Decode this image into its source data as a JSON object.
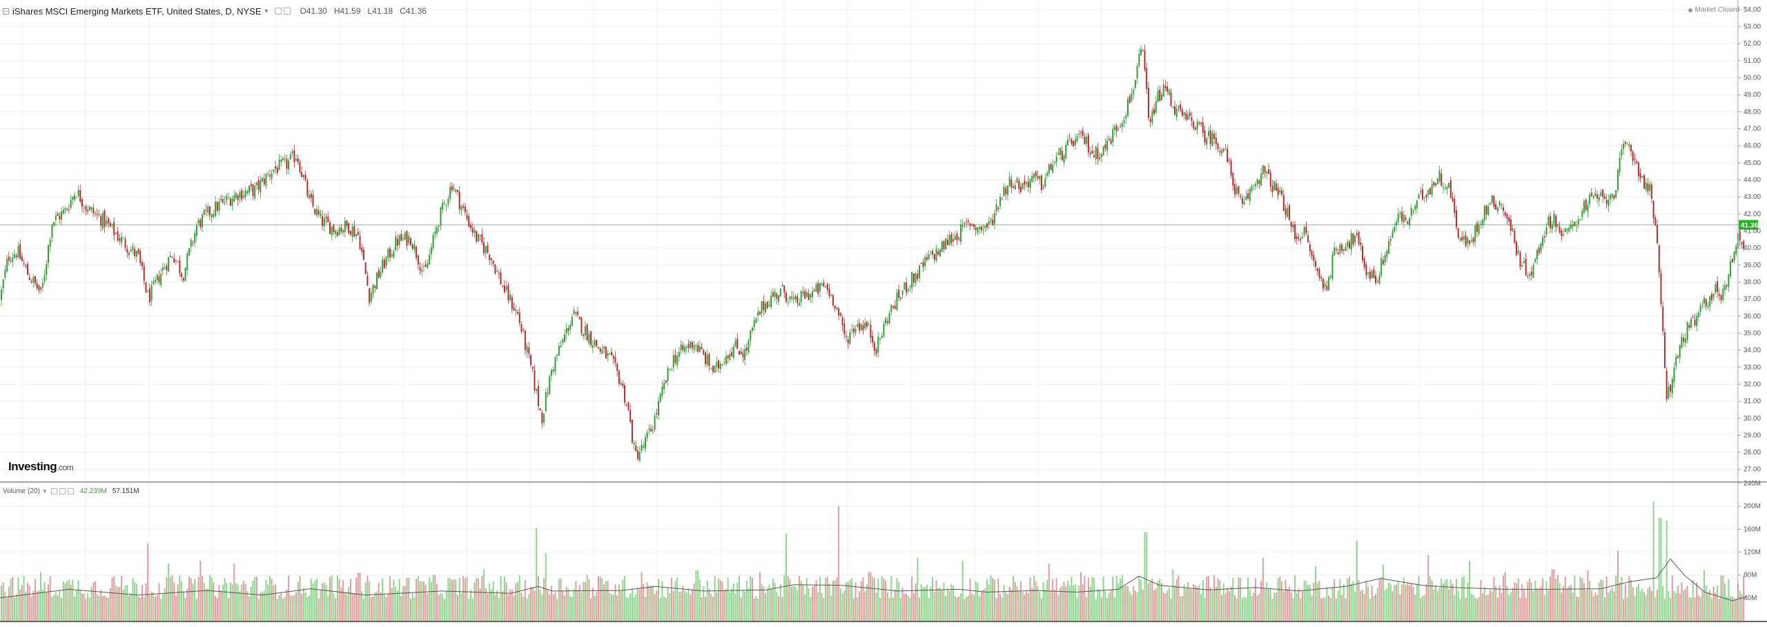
{
  "legend": {
    "symbol": "iShares MSCI Emerging Markets ETF, United States, D, NYSE",
    "open": "O41.30",
    "high": "H41.59",
    "low": "L41.18",
    "close": "C41.36"
  },
  "status": "Market Closed",
  "logo": {
    "brand": "Investing",
    "suffix": ".com"
  },
  "volume_legend": {
    "label": "Volume (20)",
    "value1": "42.239M",
    "value2": "57.151M"
  },
  "colors": {
    "up": "#2e9e32",
    "down": "#b62a2a",
    "vol_up": "#8ed68e",
    "vol_down": "#e39c9c",
    "last_price_line": "#7fdd7f",
    "last_price_tag": "#22b422",
    "ma_line": "#555555",
    "grid": "#eeeeee"
  },
  "chart_data": [
    {
      "type": "candlestick",
      "title": "iShares MSCI Emerging Markets ETF, United States, D, NYSE",
      "ylim": [
        26.3,
        54.4
      ],
      "y_ticks": [
        "27.00",
        "28.00",
        "29.00",
        "30.00",
        "31.00",
        "32.00",
        "33.00",
        "34.00",
        "35.00",
        "36.00",
        "37.00",
        "38.00",
        "39.00",
        "40.00",
        "41.00",
        "42.00",
        "43.00",
        "44.00",
        "45.00",
        "46.00",
        "47.00",
        "48.00",
        "49.00",
        "50.00",
        "51.00",
        "52.00",
        "53.00",
        "54.00"
      ],
      "last_price": 41.36,
      "last_price_label": "41.36",
      "grid": true,
      "price_path": [
        [
          0,
          37.0
        ],
        [
          12,
          39.5
        ],
        [
          25,
          39.8
        ],
        [
          40,
          38.5
        ],
        [
          60,
          37.3
        ],
        [
          75,
          41.5
        ],
        [
          95,
          42.2
        ],
        [
          110,
          43.4
        ],
        [
          125,
          42.4
        ],
        [
          150,
          41.6
        ],
        [
          175,
          40.5
        ],
        [
          200,
          39.5
        ],
        [
          215,
          37.0
        ],
        [
          235,
          38.7
        ],
        [
          250,
          39.7
        ],
        [
          265,
          38.4
        ],
        [
          285,
          41.3
        ],
        [
          300,
          42.0
        ],
        [
          320,
          42.6
        ],
        [
          345,
          43.2
        ],
        [
          370,
          43.4
        ],
        [
          395,
          44.6
        ],
        [
          415,
          44.9
        ],
        [
          430,
          45.5
        ],
        [
          448,
          42.8
        ],
        [
          465,
          41.6
        ],
        [
          485,
          41.1
        ],
        [
          505,
          41.3
        ],
        [
          520,
          40.7
        ],
        [
          535,
          37.2
        ],
        [
          555,
          39.0
        ],
        [
          575,
          40.4
        ],
        [
          595,
          40.6
        ],
        [
          615,
          38.4
        ],
        [
          635,
          41.6
        ],
        [
          655,
          43.8
        ],
        [
          670,
          42.3
        ],
        [
          690,
          40.6
        ],
        [
          710,
          39.6
        ],
        [
          730,
          37.6
        ],
        [
          750,
          36.1
        ],
        [
          770,
          32.8
        ],
        [
          785,
          30.0
        ],
        [
          800,
          33.0
        ],
        [
          815,
          34.5
        ],
        [
          830,
          36.1
        ],
        [
          850,
          35.0
        ],
        [
          870,
          34.0
        ],
        [
          885,
          33.4
        ],
        [
          900,
          32.1
        ],
        [
          910,
          30.5
        ],
        [
          920,
          27.8
        ],
        [
          930,
          28.2
        ],
        [
          945,
          29.5
        ],
        [
          960,
          31.6
        ],
        [
          975,
          33.5
        ],
        [
          990,
          34.0
        ],
        [
          1005,
          34.5
        ],
        [
          1020,
          33.6
        ],
        [
          1035,
          32.7
        ],
        [
          1050,
          33.7
        ],
        [
          1065,
          34.2
        ],
        [
          1080,
          33.8
        ],
        [
          1090,
          35.2
        ],
        [
          1105,
          36.6
        ],
        [
          1120,
          37.2
        ],
        [
          1135,
          37.5
        ],
        [
          1150,
          36.7
        ],
        [
          1165,
          37.2
        ],
        [
          1180,
          37.4
        ],
        [
          1195,
          37.8
        ],
        [
          1210,
          36.8
        ],
        [
          1225,
          34.6
        ],
        [
          1240,
          35.5
        ],
        [
          1255,
          35.5
        ],
        [
          1270,
          34.1
        ],
        [
          1285,
          35.9
        ],
        [
          1300,
          37.0
        ],
        [
          1315,
          37.9
        ],
        [
          1330,
          38.5
        ],
        [
          1345,
          39.4
        ],
        [
          1360,
          39.8
        ],
        [
          1375,
          40.5
        ],
        [
          1390,
          40.9
        ],
        [
          1405,
          41.5
        ],
        [
          1420,
          41.1
        ],
        [
          1435,
          41.4
        ],
        [
          1450,
          43.1
        ],
        [
          1465,
          44.0
        ],
        [
          1480,
          43.6
        ],
        [
          1495,
          44.1
        ],
        [
          1510,
          43.7
        ],
        [
          1525,
          45.0
        ],
        [
          1540,
          45.6
        ],
        [
          1555,
          46.3
        ],
        [
          1570,
          46.4
        ],
        [
          1585,
          45.5
        ],
        [
          1600,
          45.8
        ],
        [
          1615,
          46.9
        ],
        [
          1628,
          47.8
        ],
        [
          1640,
          49.1
        ],
        [
          1648,
          50.7
        ],
        [
          1655,
          51.5
        ],
        [
          1660,
          49.8
        ],
        [
          1665,
          46.8
        ],
        [
          1672,
          48.3
        ],
        [
          1680,
          49.0
        ],
        [
          1690,
          49.4
        ],
        [
          1700,
          48.3
        ],
        [
          1715,
          47.6
        ],
        [
          1730,
          47.4
        ],
        [
          1745,
          46.6
        ],
        [
          1760,
          46.4
        ],
        [
          1775,
          45.6
        ],
        [
          1787,
          43.8
        ],
        [
          1800,
          42.3
        ],
        [
          1815,
          43.7
        ],
        [
          1830,
          44.5
        ],
        [
          1845,
          43.6
        ],
        [
          1860,
          42.6
        ],
        [
          1875,
          40.7
        ],
        [
          1890,
          40.9
        ],
        [
          1905,
          38.9
        ],
        [
          1920,
          37.6
        ],
        [
          1935,
          39.9
        ],
        [
          1950,
          40.3
        ],
        [
          1965,
          40.6
        ],
        [
          1980,
          38.6
        ],
        [
          1995,
          38.2
        ],
        [
          2010,
          40.1
        ],
        [
          2025,
          41.8
        ],
        [
          2040,
          41.6
        ],
        [
          2055,
          42.8
        ],
        [
          2070,
          43.5
        ],
        [
          2085,
          44.2
        ],
        [
          2100,
          43.5
        ],
        [
          2115,
          40.5
        ],
        [
          2130,
          40.2
        ],
        [
          2145,
          41.8
        ],
        [
          2160,
          42.7
        ],
        [
          2175,
          42.6
        ],
        [
          2190,
          41.0
        ],
        [
          2205,
          38.9
        ],
        [
          2220,
          38.6
        ],
        [
          2235,
          40.8
        ],
        [
          2250,
          41.9
        ],
        [
          2265,
          40.6
        ],
        [
          2280,
          41.4
        ],
        [
          2295,
          42.4
        ],
        [
          2310,
          43.0
        ],
        [
          2325,
          42.8
        ],
        [
          2340,
          43.4
        ],
        [
          2350,
          45.6
        ],
        [
          2360,
          46.1
        ],
        [
          2370,
          45.0
        ],
        [
          2380,
          44.0
        ],
        [
          2390,
          43.4
        ],
        [
          2395,
          42.0
        ],
        [
          2400,
          41.2
        ],
        [
          2405,
          37.2
        ],
        [
          2410,
          34.3
        ],
        [
          2415,
          31.3
        ],
        [
          2420,
          31.9
        ],
        [
          2428,
          33.3
        ],
        [
          2440,
          35.0
        ],
        [
          2455,
          35.6
        ],
        [
          2470,
          36.8
        ],
        [
          2485,
          37.5
        ],
        [
          2495,
          37.2
        ],
        [
          2505,
          38.6
        ],
        [
          2515,
          40.4
        ],
        [
          2522,
          40.6
        ],
        [
          2528,
          40.2
        ]
      ]
    },
    {
      "type": "bar",
      "title": "Volume (20)",
      "ylim": [
        0,
        240000000
      ],
      "y_ticks": [
        "40M",
        "80M",
        "120M",
        "160M",
        "200M",
        "240M"
      ],
      "moving_average_period": 20,
      "volume_spikes": [
        [
          60,
          85
        ],
        [
          165,
          78
        ],
        [
          215,
          135
        ],
        [
          245,
          100
        ],
        [
          290,
          105
        ],
        [
          340,
          100
        ],
        [
          480,
          80
        ],
        [
          520,
          84
        ],
        [
          590,
          75
        ],
        [
          630,
          80
        ],
        [
          700,
          90
        ],
        [
          740,
          55
        ],
        [
          778,
          162
        ],
        [
          790,
          118
        ],
        [
          850,
          80
        ],
        [
          930,
          85
        ],
        [
          1010,
          88
        ],
        [
          1055,
          75
        ],
        [
          1100,
          85
        ],
        [
          1140,
          152
        ],
        [
          1215,
          200
        ],
        [
          1260,
          85
        ],
        [
          1330,
          110
        ],
        [
          1395,
          105
        ],
        [
          1520,
          100
        ],
        [
          1565,
          85
        ],
        [
          1625,
          80
        ],
        [
          1660,
          155
        ],
        [
          1700,
          90
        ],
        [
          1760,
          80
        ],
        [
          1830,
          110
        ],
        [
          1905,
          95
        ],
        [
          1965,
          140
        ],
        [
          2005,
          98
        ],
        [
          2070,
          115
        ],
        [
          2130,
          105
        ],
        [
          2180,
          85
        ],
        [
          2250,
          90
        ],
        [
          2300,
          88
        ],
        [
          2345,
          123
        ],
        [
          2395,
          208
        ],
        [
          2405,
          180
        ],
        [
          2415,
          175
        ],
        [
          2470,
          88
        ],
        [
          2505,
          72
        ]
      ],
      "ma_path": [
        [
          0,
          40
        ],
        [
          100,
          55
        ],
        [
          200,
          45
        ],
        [
          300,
          53
        ],
        [
          380,
          45
        ],
        [
          450,
          56
        ],
        [
          530,
          45
        ],
        [
          640,
          52
        ],
        [
          740,
          48
        ],
        [
          780,
          60
        ],
        [
          800,
          52
        ],
        [
          900,
          53
        ],
        [
          950,
          60
        ],
        [
          1020,
          52
        ],
        [
          1110,
          54
        ],
        [
          1150,
          63
        ],
        [
          1220,
          62
        ],
        [
          1300,
          52
        ],
        [
          1390,
          55
        ],
        [
          1430,
          50
        ],
        [
          1500,
          53
        ],
        [
          1560,
          50
        ],
        [
          1620,
          55
        ],
        [
          1650,
          78
        ],
        [
          1680,
          62
        ],
        [
          1750,
          54
        ],
        [
          1820,
          58
        ],
        [
          1880,
          52
        ],
        [
          1950,
          60
        ],
        [
          2000,
          74
        ],
        [
          2060,
          62
        ],
        [
          2110,
          58
        ],
        [
          2180,
          55
        ],
        [
          2250,
          55
        ],
        [
          2320,
          56
        ],
        [
          2360,
          68
        ],
        [
          2400,
          75
        ],
        [
          2420,
          108
        ],
        [
          2440,
          80
        ],
        [
          2470,
          50
        ],
        [
          2510,
          35
        ],
        [
          2530,
          42
        ]
      ]
    }
  ]
}
